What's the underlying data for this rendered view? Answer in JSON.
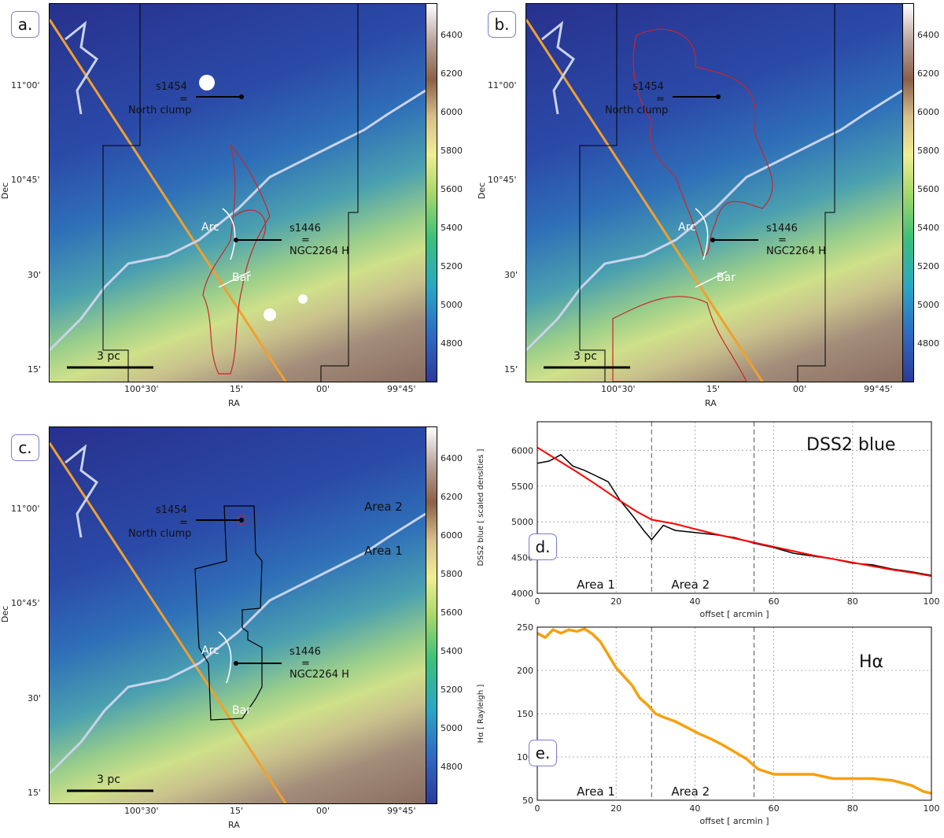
{
  "panels": {
    "a": {
      "label": "a."
    },
    "b": {
      "label": "b."
    },
    "c": {
      "label": "c."
    },
    "d": {
      "label": "d."
    },
    "e": {
      "label": "e."
    }
  },
  "map": {
    "ra_ticks": [
      "100°30'",
      "15'",
      "00'",
      "99°45'"
    ],
    "dec_ticks": [
      "11°00'",
      "10°45'",
      "30'",
      "15'"
    ],
    "xlabel": "RA",
    "ylabel": "Dec",
    "colorbar_ticks": [
      "6400",
      "6200",
      "6000",
      "5800",
      "5600",
      "5400",
      "5200",
      "5000",
      "4800"
    ],
    "scale_bar": "3 pc",
    "s1454_name": "s1454",
    "s1454_eq": "=",
    "s1454_alias": "North clump",
    "s1446_name": "s1446",
    "s1446_eq": "=",
    "s1446_alias": "NGC2264 H",
    "arc": "Arc",
    "bar": "Bar",
    "area2": "Area 2",
    "area1": "Area 1"
  },
  "colors": {
    "dss_raw": "#1a1aff",
    "dss_smooth": "#000000",
    "dss_fit": "#ff0000",
    "halpha": "#f5a10f",
    "contour": "#c8262a",
    "orange_line": "#f0a030"
  },
  "chart_data": [
    {
      "type": "line",
      "title": "DSS2 blue",
      "xlabel": "offset  [ arcmin ]",
      "ylabel": "DSS2 blue  [ scaled densities ]",
      "xlim": [
        0,
        100
      ],
      "ylim": [
        4000,
        6400
      ],
      "xticks": [
        "0",
        "20",
        "40",
        "60",
        "80",
        "100"
      ],
      "yticks": [
        "4000",
        "4500",
        "5000",
        "5500",
        "6000"
      ],
      "vlines": [
        29,
        55
      ],
      "area_labels": [
        "Area 1",
        "Area 2"
      ],
      "series": [
        {
          "name": "fit",
          "x": [
            0,
            5,
            10,
            15,
            20,
            25,
            29,
            35,
            40,
            45,
            50,
            55,
            60,
            65,
            70,
            75,
            80,
            85,
            90,
            95,
            100
          ],
          "values": [
            6040,
            5870,
            5700,
            5520,
            5330,
            5150,
            5030,
            4970,
            4900,
            4830,
            4770,
            4710,
            4650,
            4590,
            4530,
            4480,
            4430,
            4380,
            4330,
            4290,
            4240
          ]
        },
        {
          "name": "smoothed",
          "x": [
            0,
            3,
            6,
            9,
            12,
            15,
            18,
            21,
            24,
            27,
            29,
            32,
            35,
            40,
            45,
            50,
            55,
            60,
            65,
            70,
            75,
            80,
            85,
            90,
            95,
            100
          ],
          "values": [
            5820,
            5850,
            5940,
            5780,
            5720,
            5640,
            5560,
            5300,
            5100,
            4880,
            4750,
            4950,
            4880,
            4850,
            4820,
            4780,
            4700,
            4640,
            4560,
            4520,
            4480,
            4420,
            4400,
            4340,
            4300,
            4250
          ]
        }
      ]
    },
    {
      "type": "line",
      "title": "Hα",
      "xlabel": "offset  [ arcmin ]",
      "ylabel": "Hα  [ Rayleigh ]",
      "xlim": [
        0,
        100
      ],
      "ylim": [
        50,
        250
      ],
      "xticks": [
        "0",
        "20",
        "40",
        "60",
        "80",
        "100"
      ],
      "yticks": [
        "50",
        "100",
        "150",
        "200",
        "250"
      ],
      "vlines": [
        29,
        55
      ],
      "area_labels": [
        "Area 1",
        "Area 2"
      ],
      "series": [
        {
          "name": "Halpha",
          "x": [
            0,
            2,
            4,
            6,
            8,
            10,
            12,
            14,
            16,
            18,
            20,
            22,
            24,
            26,
            28,
            30,
            32,
            35,
            38,
            41,
            44,
            47,
            50,
            53,
            56,
            60,
            65,
            70,
            75,
            80,
            85,
            90,
            95,
            98,
            100
          ],
          "values": [
            243,
            238,
            247,
            243,
            247,
            245,
            248,
            242,
            233,
            218,
            203,
            193,
            183,
            168,
            160,
            150,
            146,
            141,
            134,
            127,
            121,
            114,
            106,
            98,
            86,
            80,
            80,
            80,
            75,
            75,
            75,
            73,
            67,
            60,
            58
          ]
        }
      ]
    }
  ]
}
